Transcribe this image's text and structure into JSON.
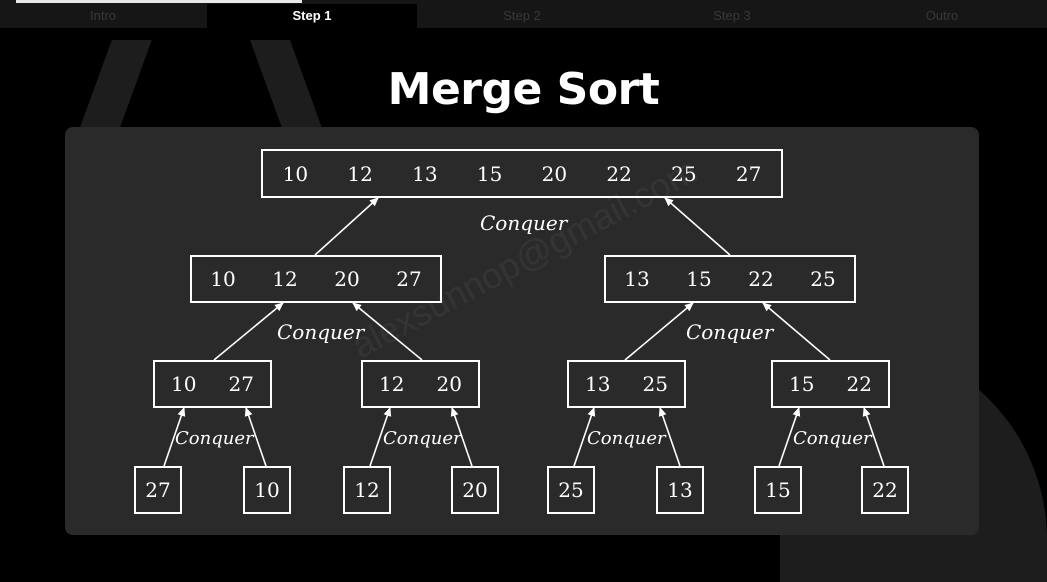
{
  "tabs": [
    "Intro",
    "Step 1",
    "Step 2",
    "Step 3",
    "Outro"
  ],
  "active_tab": "Step 1",
  "title": "Merge Sort",
  "watermark": "alexsunnop@gmail.com",
  "level0": [
    "10",
    "12",
    "13",
    "15",
    "20",
    "22",
    "25",
    "27"
  ],
  "level1": [
    [
      "10",
      "12",
      "20",
      "27"
    ],
    [
      "13",
      "15",
      "22",
      "25"
    ]
  ],
  "level2": [
    [
      "10",
      "27"
    ],
    [
      "12",
      "20"
    ],
    [
      "13",
      "25"
    ],
    [
      "15",
      "22"
    ]
  ],
  "level3": [
    "27",
    "10",
    "12",
    "20",
    "25",
    "13",
    "15",
    "22"
  ],
  "step_label": "Conquer"
}
